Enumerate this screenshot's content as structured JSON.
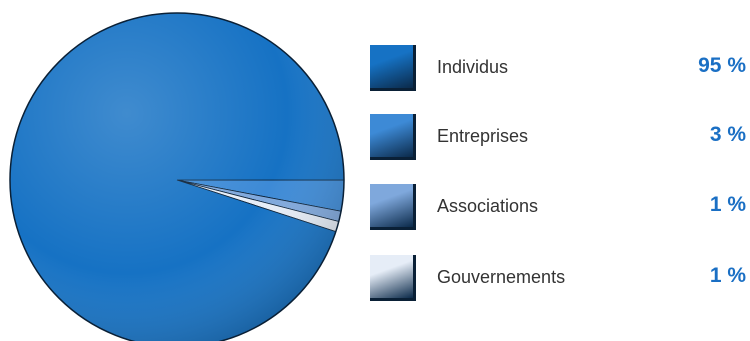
{
  "chart_data": {
    "type": "pie",
    "title": "",
    "slices": [
      {
        "label": "Individus",
        "value": 95,
        "display": "95 %",
        "color": "#1672c4"
      },
      {
        "label": "Entreprises",
        "value": 3,
        "display": "3 %",
        "color": "#3d8ad6"
      },
      {
        "label": "Associations",
        "value": 1,
        "display": "1 %",
        "color": "#7fa8dc"
      },
      {
        "label": "Gouvernements",
        "value": 1,
        "display": "1 %",
        "color": "#e6edf7"
      }
    ],
    "legend_position": "right"
  },
  "colors": {
    "value_text": "#1a6fc4",
    "label_text": "#333333",
    "outline": "#0a2036"
  }
}
